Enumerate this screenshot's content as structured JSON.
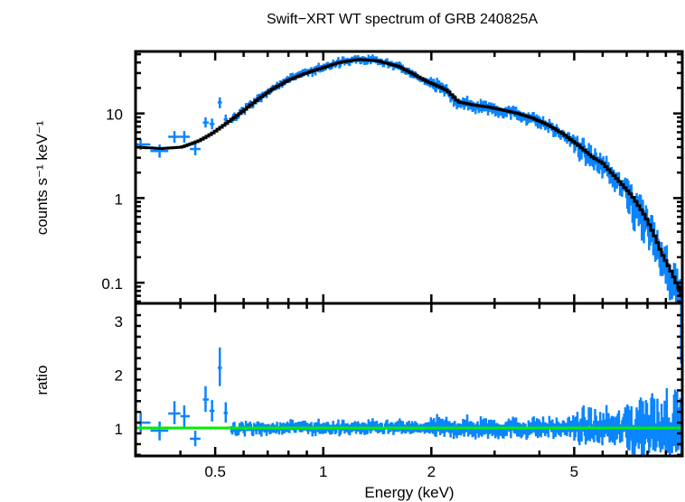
{
  "chart_data": {
    "type": "scatter",
    "title": "Swift−XRT WT spectrum of GRB 240825A",
    "xlabel": "Energy (keV)",
    "xscale": "log",
    "xlim": [
      0.3,
      10
    ],
    "x_ticks": [
      {
        "value": 0.5,
        "label": "0.5"
      },
      {
        "value": 1,
        "label": "1"
      },
      {
        "value": 2,
        "label": "2"
      },
      {
        "value": 5,
        "label": "5"
      }
    ],
    "colors": {
      "data": "#0a84ff",
      "model": "#000000",
      "unity": "#00ee00"
    },
    "panels": [
      {
        "name": "spectrum",
        "ylabel": "counts s⁻¹ keV⁻¹",
        "yscale": "log",
        "ylim": [
          0.057,
          54
        ],
        "y_ticks": [
          {
            "value": 0.1,
            "label": "0.1"
          },
          {
            "value": 1,
            "label": "1"
          },
          {
            "value": 10,
            "label": "10"
          }
        ],
        "series": [
          {
            "name": "model",
            "type": "line",
            "x": [
              0.3,
              0.35,
              0.4,
              0.45,
              0.486,
              0.53,
              0.59,
              0.65,
              0.716,
              0.79,
              0.866,
              0.95,
              1.0,
              1.1,
              1.24,
              1.4,
              1.61,
              1.8,
              1.94,
              2.1,
              2.2,
              2.36,
              2.6,
              2.86,
              3.1,
              3.46,
              3.8,
              4.2,
              4.6,
              5.1,
              5.6,
              5.95,
              6.16,
              6.6,
              7.2,
              7.8,
              8.3,
              8.7,
              9.2,
              9.8,
              10.0
            ],
            "y": [
              4.0,
              3.85,
              4.0,
              4.8,
              5.8,
              7.5,
              10.5,
              14.5,
              19.4,
              24.5,
              28.7,
              33,
              35,
              40,
              43.5,
              42,
              36,
              28,
              23.6,
              20.5,
              18.5,
              13.7,
              12.6,
              11.9,
              11.1,
              10.0,
              8.8,
              7.3,
              5.8,
              4.2,
              3.0,
              2.6,
              2.2,
              1.6,
              1.05,
              0.62,
              0.36,
              0.22,
              0.14,
              0.078,
              0.06
            ]
          },
          {
            "name": "data",
            "type": "errorbar",
            "low_energy_points": [
              {
                "x": 0.31,
                "xerr": [
                  0.3,
                  0.33
                ],
                "y": 4.3,
                "yerr": [
                  3.7,
                  5.0
                ]
              },
              {
                "x": 0.35,
                "xerr": [
                  0.33,
                  0.37
                ],
                "y": 3.6,
                "yerr": [
                  3.0,
                  4.3
                ]
              },
              {
                "x": 0.385,
                "xerr": [
                  0.37,
                  0.4
                ],
                "y": 5.3,
                "yerr": [
                  4.5,
                  6.2
                ]
              },
              {
                "x": 0.41,
                "xerr": [
                  0.4,
                  0.425
                ],
                "y": 5.3,
                "yerr": [
                  4.5,
                  6.2
                ]
              },
              {
                "x": 0.44,
                "xerr": [
                  0.425,
                  0.455
                ],
                "y": 3.8,
                "yerr": [
                  3.2,
                  4.5
                ]
              },
              {
                "x": 0.47,
                "xerr": [
                  0.462,
                  0.48
                ],
                "y": 7.8,
                "yerr": [
                  6.8,
                  9.0
                ]
              },
              {
                "x": 0.49,
                "xerr": [
                  0.482,
                  0.498
                ],
                "y": 7.5,
                "yerr": [
                  6.5,
                  8.7
                ]
              },
              {
                "x": 0.515,
                "xerr": [
                  0.508,
                  0.522
                ],
                "y": 13.5,
                "yerr": [
                  11.5,
                  15.5
                ]
              },
              {
                "x": 0.535,
                "xerr": [
                  0.528,
                  0.542
                ],
                "y": 8.5,
                "yerr": [
                  7.4,
                  9.7
                ]
              }
            ],
            "note": "Dense scatter of ~700 binned data points from 0.55 to 10 keV closely following the model with increasing scatter above 5 keV"
          }
        ]
      },
      {
        "name": "ratio",
        "ylabel": "ratio",
        "yscale": "linear",
        "ylim": [
          0.48,
          3.32
        ],
        "y_ticks": [
          {
            "value": 1,
            "label": "1"
          },
          {
            "value": 2,
            "label": "2"
          },
          {
            "value": 3,
            "label": "3"
          }
        ],
        "series": [
          {
            "name": "unity",
            "type": "hline",
            "y": 1.0
          },
          {
            "name": "ratio-data",
            "type": "errorbar",
            "low_energy_points": [
              {
                "x": 0.31,
                "y": 1.1,
                "yerr": [
                  0.88,
                  1.3
                ]
              },
              {
                "x": 0.35,
                "y": 0.95,
                "yerr": [
                  0.77,
                  1.12
                ]
              },
              {
                "x": 0.385,
                "y": 1.27,
                "yerr": [
                  1.07,
                  1.5
                ]
              },
              {
                "x": 0.41,
                "y": 1.22,
                "yerr": [
                  1.02,
                  1.42
                ]
              },
              {
                "x": 0.44,
                "y": 0.8,
                "yerr": [
                  0.66,
                  0.95
                ]
              },
              {
                "x": 0.47,
                "y": 1.53,
                "yerr": [
                  1.3,
                  1.78
                ]
              },
              {
                "x": 0.49,
                "y": 1.32,
                "yerr": [
                  1.12,
                  1.52
                ]
              },
              {
                "x": 0.515,
                "y": 2.12,
                "yerr": [
                  1.78,
                  2.5
                ]
              },
              {
                "x": 0.535,
                "y": 1.28,
                "yerr": [
                  1.1,
                  1.48
                ]
              }
            ],
            "note": "Ratio values scatter around 1 (roughly 0.6-1.6) from 0.55 to 7 keV, scatter growing to ~0.5-2.5 above 7 keV; last bin near 10 keV extends beyond 3"
          }
        ]
      }
    ]
  }
}
